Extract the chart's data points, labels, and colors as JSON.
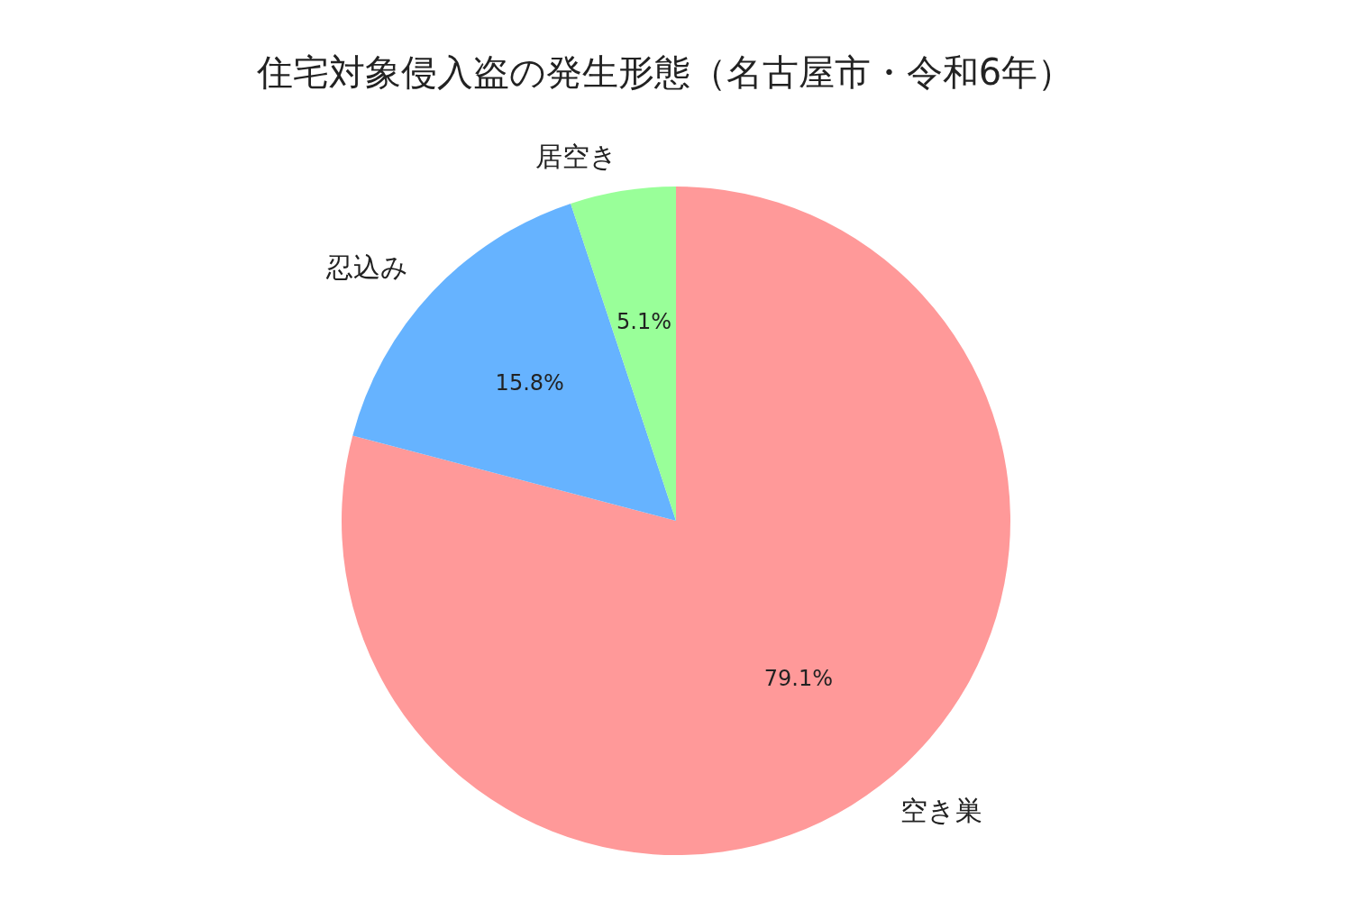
{
  "chart_data": {
    "type": "pie",
    "title": "住宅対象侵入盗の発生形態（名古屋市・令和6年）",
    "categories": [
      "空き巣",
      "忍込み",
      "居空き"
    ],
    "values": [
      79.1,
      15.8,
      5.1
    ],
    "colors": [
      "#ff9999",
      "#66b3ff",
      "#99ff99"
    ],
    "value_labels": [
      "79.1%",
      "15.8%",
      "5.1%"
    ]
  }
}
